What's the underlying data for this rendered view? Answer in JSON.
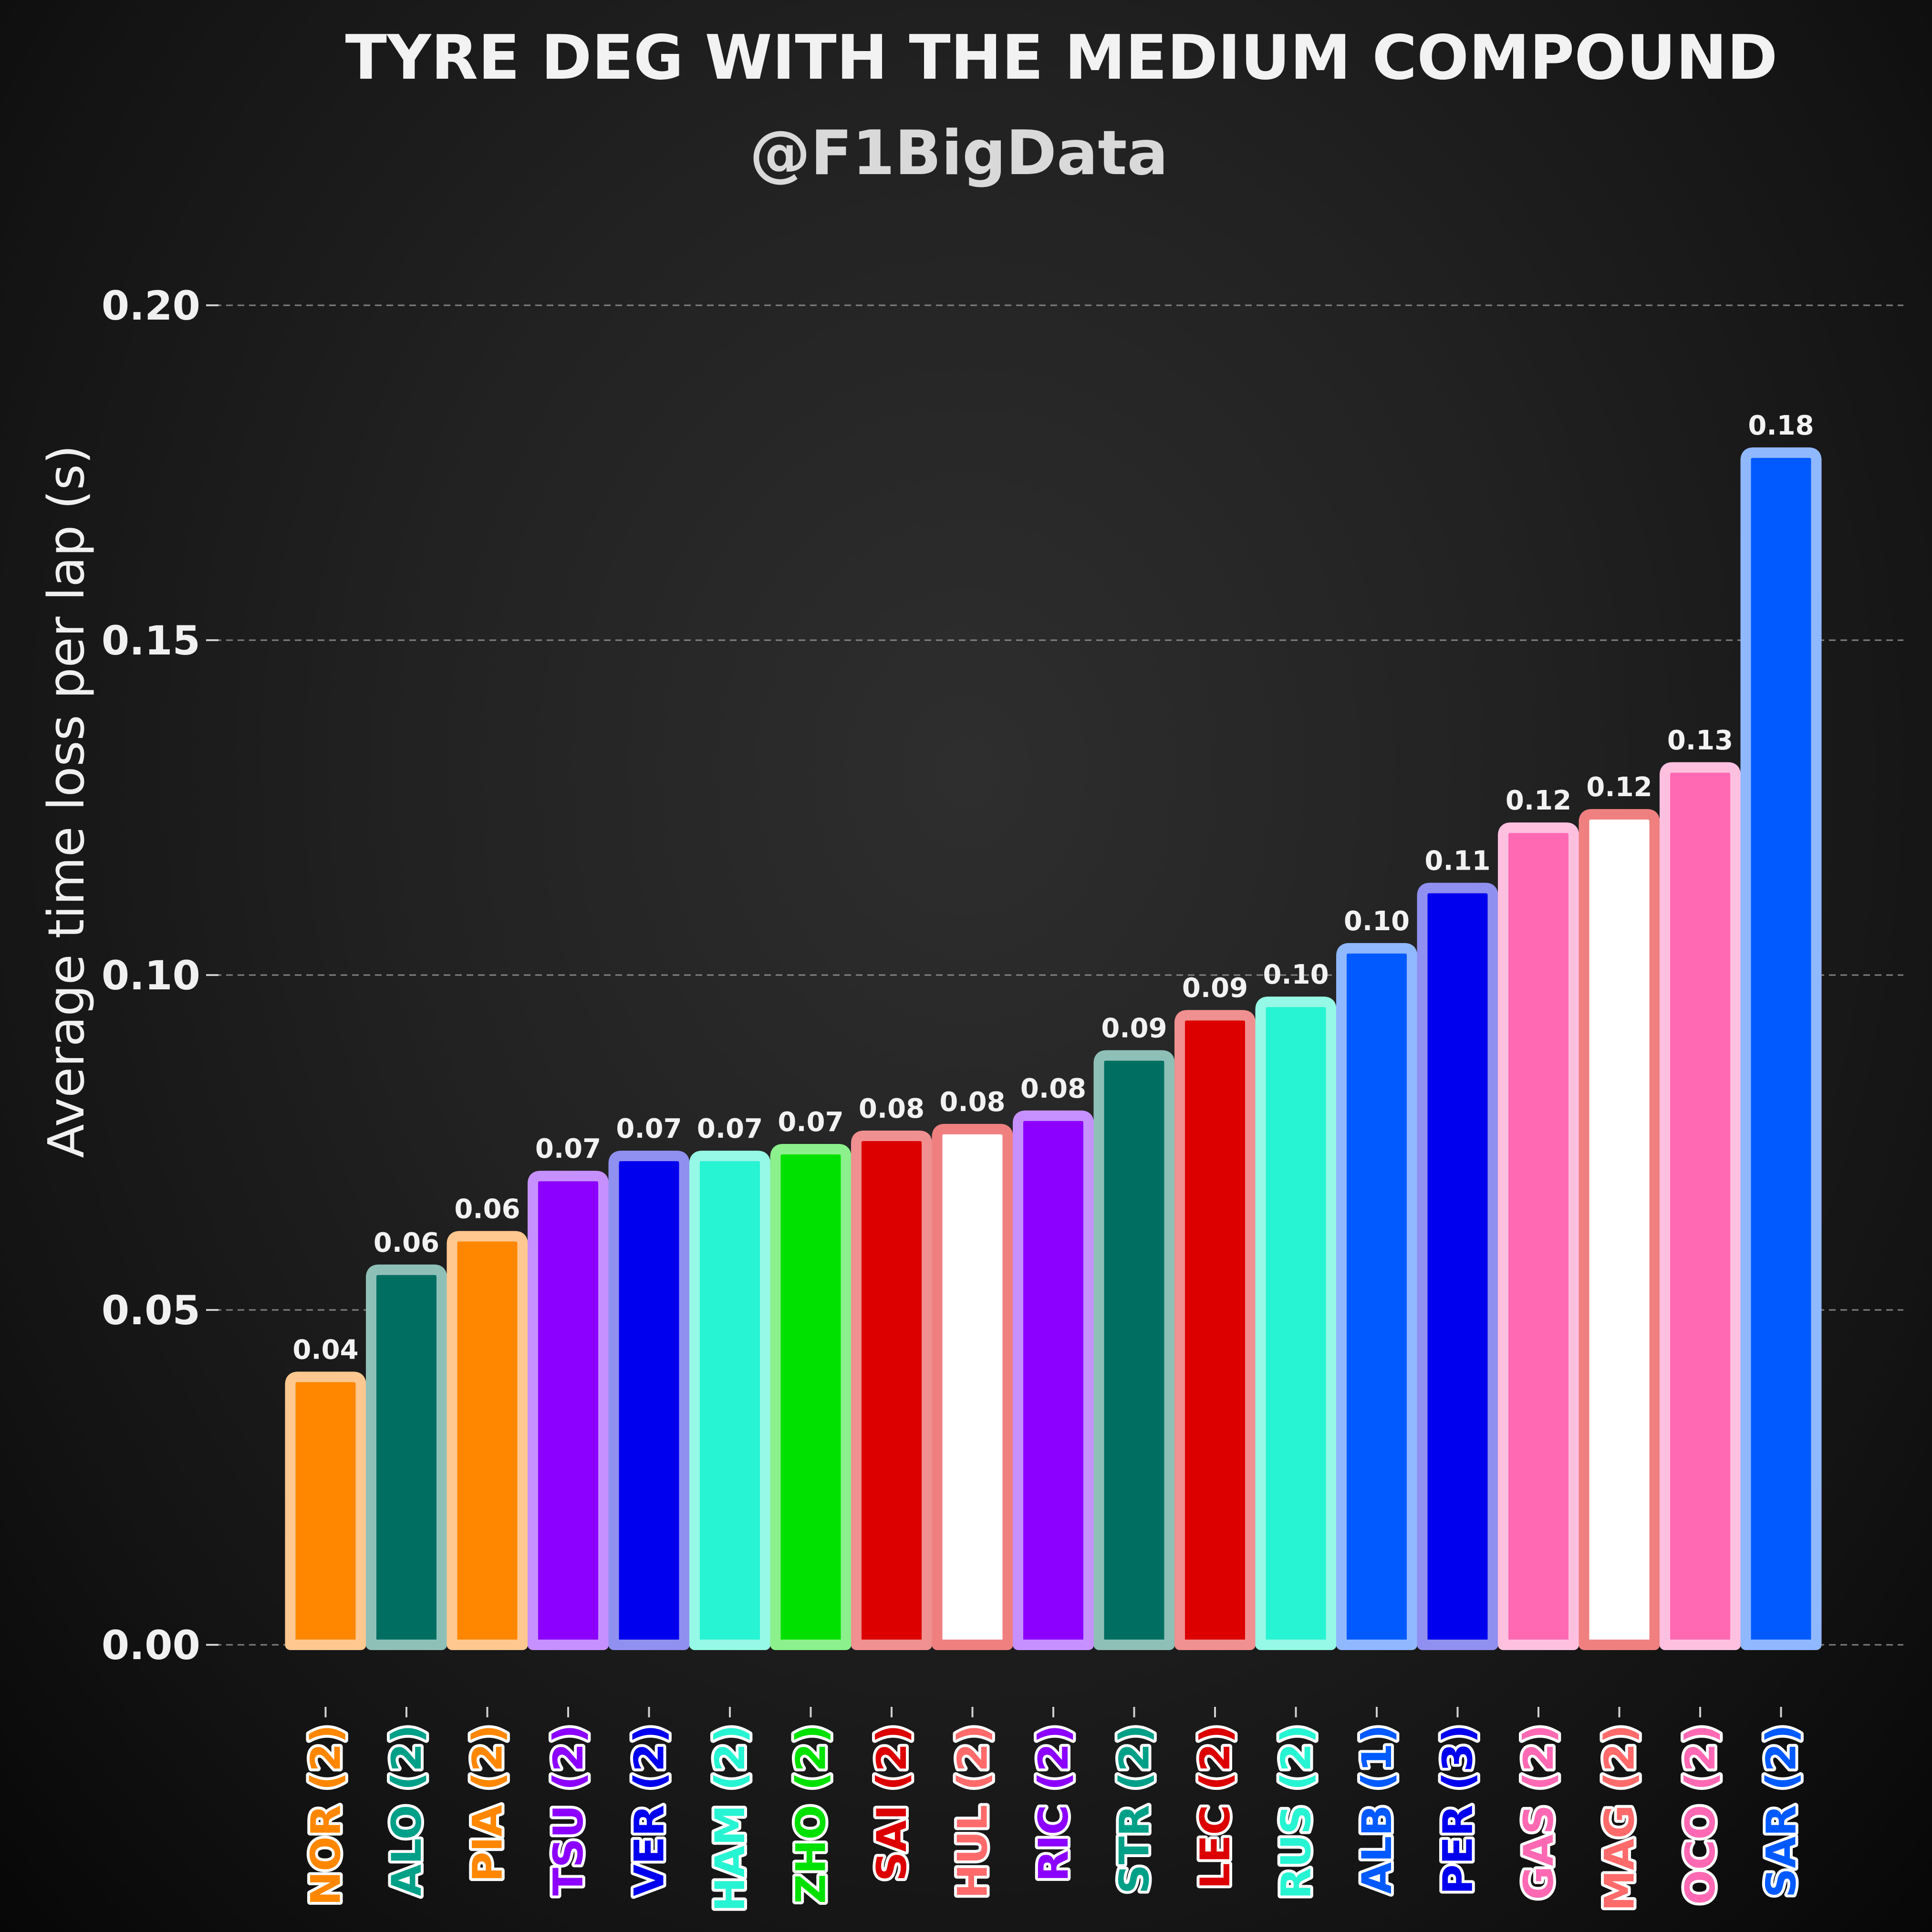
{
  "chart_data": {
    "type": "bar",
    "title": "TYRE DEG WITH THE MEDIUM COMPOUND",
    "subtitle": "@F1BigData",
    "xlabel": "",
    "ylabel": "Average time loss per lap (s)",
    "ylim": [
      -0.011,
      0.21
    ],
    "yticks": [
      "0.00",
      "0.05",
      "0.10",
      "0.15",
      "0.20"
    ],
    "grid": "horizontal dashed",
    "categories": [
      "NOR (2)",
      "ALO (2)",
      "PIA (2)",
      "TSU (2)",
      "VER (2)",
      "HAM (2)",
      "ZHO (2)",
      "SAI (2)",
      "HUL (2)",
      "RIC (2)",
      "STR (2)",
      "LEC (2)",
      "RUS (2)",
      "ALB (1)",
      "PER (3)",
      "GAS (2)",
      "MAG (2)",
      "OCO (2)",
      "SAR (2)"
    ],
    "values": [
      0.04,
      0.056,
      0.061,
      0.07,
      0.073,
      0.073,
      0.074,
      0.076,
      0.077,
      0.079,
      0.088,
      0.094,
      0.096,
      0.104,
      0.113,
      0.122,
      0.124,
      0.131,
      0.178
    ],
    "value_labels": [
      "0.04",
      "0.06",
      "0.06",
      "0.07",
      "0.07",
      "0.07",
      "0.07",
      "0.08",
      "0.08",
      "0.08",
      "0.09",
      "0.09",
      "0.10",
      "0.10",
      "0.11",
      "0.12",
      "0.12",
      "0.13",
      "0.18"
    ],
    "fill_colors": [
      "#ff8700",
      "#006f62",
      "#ff8700",
      "#8c00ff",
      "#0000ee",
      "#27f4d2",
      "#00e100",
      "#dc0000",
      "#ffffff",
      "#8c00ff",
      "#006f62",
      "#dc0000",
      "#27f4d2",
      "#005aff",
      "#0000ee",
      "#ff69b4",
      "#ffffff",
      "#ff69b4",
      "#005aff"
    ],
    "edge_colors": [
      "#ffc890",
      "#8fc0b8",
      "#ffc890",
      "#c690ff",
      "#9090f0",
      "#96f8e6",
      "#8cf08c",
      "#f09090",
      "#f08080",
      "#c690ff",
      "#8fc0b8",
      "#f09090",
      "#96f8e6",
      "#90b8ff",
      "#9090f0",
      "#ffc0e0",
      "#f08080",
      "#ffc0e0",
      "#90b8ff"
    ],
    "label_colors": [
      "#ff8700",
      "#00a088",
      "#ff8700",
      "#8c00ff",
      "#0000ee",
      "#27f4d2",
      "#00e100",
      "#dc0000",
      "#ff6a6a",
      "#8c00ff",
      "#00a088",
      "#dc0000",
      "#27f4d2",
      "#005aff",
      "#0000ee",
      "#ff69b4",
      "#ff6a6a",
      "#ff69b4",
      "#005aff"
    ]
  }
}
